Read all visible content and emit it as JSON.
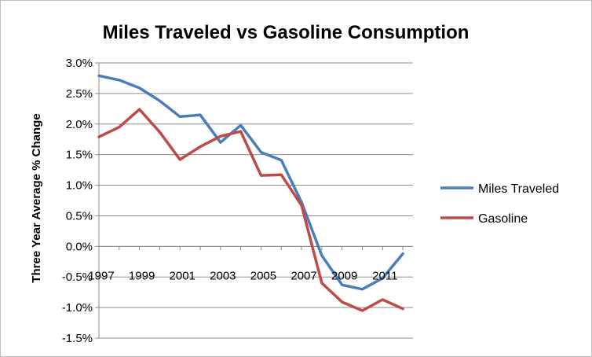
{
  "chart_data": {
    "type": "line",
    "title": "Miles Traveled vs Gasoline Consumption",
    "xlabel": "",
    "ylabel": "Three Year Average % Change",
    "x": [
      1997,
      1998,
      1999,
      2000,
      2001,
      2002,
      2003,
      2004,
      2005,
      2006,
      2007,
      2008,
      2009,
      2010,
      2011,
      2012
    ],
    "x_tick_labels": [
      "1997",
      "1999",
      "2001",
      "2003",
      "2005",
      "2007",
      "2009",
      "2011"
    ],
    "y_tick_labels": [
      "3.0%",
      "2.5%",
      "2.0%",
      "1.5%",
      "1.0%",
      "0.5%",
      "0.0%",
      "-0.5%",
      "-1.0%",
      "-1.5%"
    ],
    "y_ticks": [
      3.0,
      2.5,
      2.0,
      1.5,
      1.0,
      0.5,
      0.0,
      -0.5,
      -1.0,
      -1.5
    ],
    "ylim": [
      -1.5,
      3.0
    ],
    "grid": "horizontal",
    "legend_position": "right",
    "series": [
      {
        "name": "Miles Traveled",
        "color": "#4a7ebb",
        "values": [
          2.79,
          2.72,
          2.59,
          2.38,
          2.12,
          2.15,
          1.7,
          1.98,
          1.54,
          1.41,
          0.72,
          -0.15,
          -0.63,
          -0.7,
          -0.52,
          -0.12
        ]
      },
      {
        "name": "Gasoline",
        "color": "#be4b48",
        "values": [
          1.79,
          1.95,
          2.24,
          1.87,
          1.42,
          1.63,
          1.8,
          1.88,
          1.16,
          1.17,
          0.67,
          -0.6,
          -0.91,
          -1.05,
          -0.87,
          -1.02
        ]
      }
    ]
  }
}
